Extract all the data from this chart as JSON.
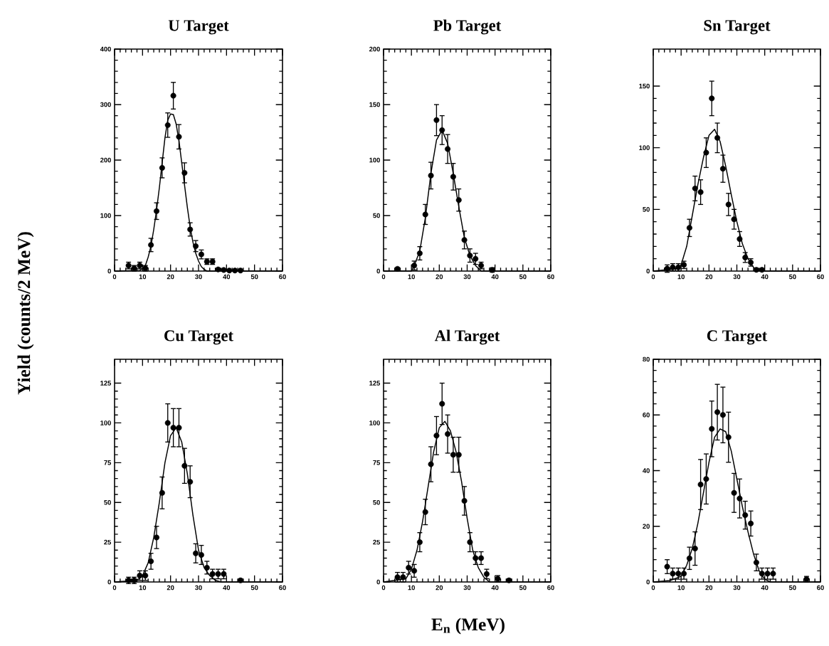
{
  "chart_data": [
    {
      "type": "scatter",
      "title": "U Target",
      "ylabel": "Yield (counts/2 MeV)",
      "xlim": [
        0,
        60
      ],
      "ylim": [
        0,
        400
      ],
      "xticks": [
        0,
        10,
        20,
        30,
        40,
        50,
        60
      ],
      "yticks": [
        0,
        100,
        200,
        300,
        400
      ],
      "series": [
        {
          "type": "scatter",
          "marker": "circle",
          "color": "#000000",
          "x": [
            5,
            7,
            9,
            11,
            13,
            15,
            17,
            19,
            21,
            23,
            25,
            27,
            29,
            31,
            33,
            35,
            37,
            39,
            41,
            43,
            45
          ],
          "values": [
            10,
            5,
            10,
            5,
            47,
            108,
            186,
            263,
            316,
            242,
            177,
            75,
            45,
            30,
            17,
            17,
            3,
            2,
            1,
            1,
            1
          ],
          "errors": [
            6,
            5,
            6,
            5,
            12,
            15,
            18,
            22,
            24,
            22,
            18,
            12,
            10,
            8,
            5,
            5,
            null,
            null,
            null,
            null,
            null
          ]
        },
        {
          "type": "line",
          "line_style": "solid",
          "color": "#000000",
          "x": [
            0,
            9,
            10,
            11,
            12,
            13,
            14,
            15,
            16,
            17,
            18,
            19,
            20,
            21,
            22,
            23,
            24,
            25,
            26,
            27,
            28,
            29,
            30,
            31,
            32,
            33,
            60
          ],
          "values": [
            0,
            1,
            5,
            10,
            25,
            45,
            75,
            110,
            150,
            195,
            240,
            272,
            283,
            282,
            265,
            235,
            195,
            155,
            115,
            80,
            52,
            32,
            18,
            8,
            3,
            0,
            0
          ]
        }
      ]
    },
    {
      "type": "scatter",
      "title": "Pb Target",
      "xlim": [
        0,
        60
      ],
      "ylim": [
        0,
        200
      ],
      "xticks": [
        0,
        10,
        20,
        30,
        40,
        50,
        60
      ],
      "yticks": [
        0,
        50,
        100,
        150,
        200
      ],
      "series": [
        {
          "type": "scatter",
          "marker": "circle",
          "color": "#000000",
          "x": [
            5,
            11,
            13,
            15,
            17,
            19,
            21,
            23,
            25,
            27,
            29,
            31,
            33,
            35,
            39
          ],
          "values": [
            2,
            5,
            16,
            51,
            86,
            136,
            127,
            110,
            85,
            64,
            28,
            14,
            11,
            5,
            1
          ],
          "errors": [
            1,
            4,
            6,
            9,
            12,
            14,
            13,
            13,
            12,
            10,
            8,
            6,
            5,
            3,
            2
          ]
        },
        {
          "type": "line",
          "line_style": "solid",
          "color": "#000000",
          "x": [
            0,
            10,
            11,
            13,
            15,
            17,
            19,
            21,
            23,
            25,
            27,
            29,
            31,
            33,
            35,
            60
          ],
          "values": [
            0,
            0,
            5,
            18,
            48,
            88,
            118,
            127,
            115,
            88,
            58,
            30,
            14,
            5,
            0,
            0
          ]
        }
      ]
    },
    {
      "type": "scatter",
      "title": "Sn Target",
      "xlim": [
        0,
        60
      ],
      "ylim": [
        0,
        180
      ],
      "xticks": [
        0,
        10,
        20,
        30,
        40,
        50,
        60
      ],
      "yticks": [
        0,
        50,
        100,
        150
      ],
      "series": [
        {
          "type": "scatter",
          "marker": "circle",
          "color": "#000000",
          "x": [
            5,
            7,
            9,
            11,
            13,
            15,
            17,
            19,
            21,
            23,
            25,
            27,
            29,
            31,
            33,
            35,
            37,
            39
          ],
          "values": [
            2,
            3,
            3,
            5,
            35,
            67,
            64,
            96,
            140,
            108,
            83,
            54,
            42,
            26,
            11,
            7,
            1,
            1
          ],
          "errors": [
            3,
            3,
            3,
            3,
            7,
            10,
            10,
            12,
            14,
            12,
            11,
            9,
            8,
            6,
            4,
            3,
            1,
            1
          ]
        },
        {
          "type": "line",
          "line_style": "solid",
          "color": "#000000",
          "x": [
            0,
            9,
            10,
            12,
            14,
            16,
            18,
            20,
            22,
            24,
            26,
            28,
            30,
            32,
            34,
            36,
            38,
            60
          ],
          "values": [
            0,
            2,
            5,
            20,
            45,
            70,
            92,
            110,
            115,
            105,
            85,
            62,
            40,
            22,
            10,
            3,
            0,
            0
          ]
        }
      ]
    },
    {
      "type": "scatter",
      "title": "Cu Target",
      "xlim": [
        0,
        60
      ],
      "ylim": [
        0,
        140
      ],
      "xticks": [
        0,
        10,
        20,
        30,
        40,
        50,
        60
      ],
      "yticks": [
        0,
        25,
        50,
        75,
        100,
        125
      ],
      "series": [
        {
          "type": "scatter",
          "marker": "circle",
          "color": "#000000",
          "x": [
            5,
            7,
            9,
            11,
            13,
            15,
            17,
            19,
            21,
            23,
            25,
            27,
            29,
            31,
            33,
            35,
            37,
            39,
            45
          ],
          "values": [
            1,
            1,
            4,
            4,
            13,
            28,
            56,
            100,
            97,
            97,
            73,
            63,
            18,
            17,
            9,
            5,
            5,
            5,
            1
          ],
          "errors": [
            2,
            2,
            3,
            3,
            5,
            7,
            10,
            12,
            12,
            12,
            11,
            10,
            6,
            6,
            4,
            3,
            3,
            3,
            1
          ]
        },
        {
          "type": "line",
          "line_style": "solid",
          "color": "#000000",
          "x": [
            0,
            8,
            10,
            12,
            14,
            16,
            18,
            20,
            22,
            24,
            26,
            28,
            30,
            32,
            34,
            36,
            38,
            60
          ],
          "values": [
            0,
            1,
            4,
            12,
            28,
            50,
            75,
            92,
            97,
            88,
            68,
            42,
            20,
            9,
            4,
            1,
            0,
            0
          ]
        }
      ]
    },
    {
      "type": "scatter",
      "title": "Al Target",
      "xlabel": "E$_{n}$ (MeV)",
      "xlim": [
        0,
        60
      ],
      "ylim": [
        0,
        140
      ],
      "xticks": [
        0,
        10,
        20,
        30,
        40,
        50,
        60
      ],
      "yticks": [
        0,
        25,
        50,
        75,
        100,
        125
      ],
      "series": [
        {
          "type": "scatter",
          "marker": "circle",
          "color": "#000000",
          "x": [
            5,
            7,
            9,
            11,
            13,
            15,
            17,
            19,
            21,
            23,
            25,
            27,
            29,
            31,
            33,
            35,
            37,
            41,
            45
          ],
          "values": [
            3,
            3,
            9,
            7,
            25,
            44,
            74,
            92,
            112,
            93,
            80,
            80,
            51,
            25,
            15,
            15,
            5,
            2,
            1
          ],
          "errors": [
            3,
            3,
            4,
            4,
            6,
            8,
            11,
            12,
            13,
            12,
            11,
            11,
            9,
            6,
            4,
            4,
            3,
            2,
            1
          ]
        },
        {
          "type": "line",
          "line_style": "solid",
          "color": "#000000",
          "x": [
            0,
            8,
            10,
            12,
            14,
            16,
            18,
            20,
            22,
            24,
            26,
            28,
            30,
            32,
            34,
            36,
            38,
            60
          ],
          "values": [
            0,
            2,
            8,
            20,
            38,
            60,
            82,
            97,
            101,
            95,
            82,
            63,
            40,
            20,
            9,
            3,
            0,
            0
          ]
        }
      ]
    },
    {
      "type": "scatter",
      "title": "C Target",
      "xlim": [
        0,
        60
      ],
      "ylim": [
        0,
        80
      ],
      "xticks": [
        0,
        10,
        20,
        30,
        40,
        50,
        60
      ],
      "yticks": [
        0,
        20,
        40,
        60,
        80
      ],
      "series": [
        {
          "type": "scatter",
          "marker": "circle",
          "color": "#000000",
          "x": [
            5,
            7,
            9,
            11,
            13,
            15,
            17,
            19,
            21,
            23,
            25,
            27,
            29,
            31,
            33,
            35,
            37,
            39,
            41,
            43,
            55
          ],
          "values": [
            5.5,
            3,
            3,
            3,
            8.5,
            12,
            35,
            37,
            55,
            61,
            60,
            52,
            32,
            30,
            24,
            21,
            7,
            3,
            3,
            3,
            1
          ],
          "errors": [
            2.5,
            2,
            2,
            2,
            4,
            6,
            9,
            9,
            10,
            10,
            10,
            9,
            7,
            7,
            5,
            4.5,
            3,
            2,
            2,
            2,
            1
          ]
        },
        {
          "type": "line",
          "line_style": "solid",
          "color": "#000000",
          "x": [
            0,
            6,
            10,
            12,
            14,
            16,
            18,
            20,
            22,
            24,
            26,
            28,
            30,
            32,
            34,
            36,
            38,
            40,
            42,
            60
          ],
          "values": [
            0,
            0.5,
            2,
            6,
            12,
            21,
            32,
            43,
            52,
            55,
            54,
            47,
            37,
            27,
            18,
            10,
            4,
            1,
            0,
            0
          ]
        }
      ]
    }
  ]
}
